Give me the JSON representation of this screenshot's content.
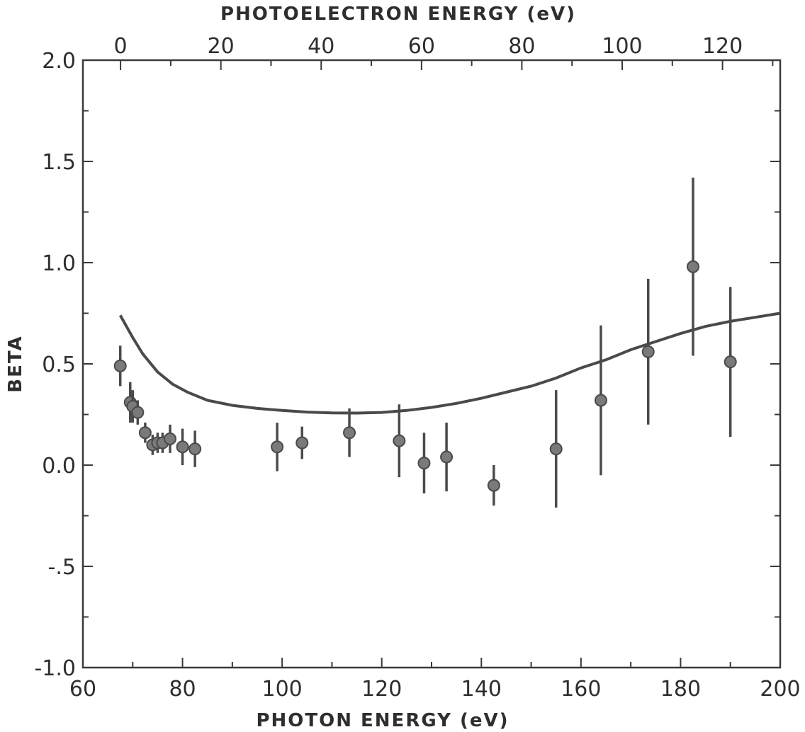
{
  "chart_data": {
    "type": "scatter",
    "xlabel": "PHOTON ENERGY (eV)",
    "x2label": "PHOTOELECTRON ENERGY (eV)",
    "ylabel": "BETA",
    "xlim": [
      60,
      200
    ],
    "ylim": [
      -1.0,
      2.0
    ],
    "x2lim": [
      -7.5,
      131.5
    ],
    "grid": false,
    "x_ticks": [
      60,
      80,
      100,
      120,
      140,
      160,
      180,
      200
    ],
    "x_ticklabels": [
      "60",
      "80",
      "100",
      "120",
      "140",
      "160",
      "180",
      "200"
    ],
    "x2_ticks": [
      0,
      20,
      40,
      60,
      80,
      100,
      120
    ],
    "x2_ticklabels": [
      "0",
      "20",
      "40",
      "60",
      "80",
      "100",
      "120"
    ],
    "y_ticks": [
      -1.0,
      -0.5,
      0.0,
      0.5,
      1.0,
      1.5,
      2.0
    ],
    "y_ticklabels": [
      "-1.0",
      "-.5",
      "0.0",
      "0.5",
      "1.0",
      "1.5",
      "2.0"
    ],
    "series": [
      {
        "kind": "points",
        "x": [
          67.5,
          69.5,
          70.0,
          71.0,
          72.5,
          74.0,
          75.0,
          76.0,
          77.5,
          80.0,
          82.5,
          99.0,
          104.0,
          113.5,
          123.5,
          128.5,
          133.0,
          142.5,
          155.0,
          164.0,
          173.5,
          182.5,
          190.0
        ],
        "y": [
          0.49,
          0.31,
          0.29,
          0.26,
          0.16,
          0.1,
          0.11,
          0.11,
          0.13,
          0.09,
          0.08,
          0.09,
          0.11,
          0.16,
          0.12,
          0.01,
          0.04,
          -0.1,
          0.08,
          0.32,
          0.56,
          0.98,
          0.51
        ],
        "err": [
          0.1,
          0.1,
          0.08,
          0.06,
          0.05,
          0.05,
          0.05,
          0.05,
          0.07,
          0.09,
          0.09,
          0.12,
          0.08,
          0.12,
          0.18,
          0.15,
          0.17,
          0.1,
          0.29,
          0.37,
          0.36,
          0.44,
          0.37
        ]
      },
      {
        "kind": "curve",
        "x": [
          67.5,
          70,
          72,
          75,
          78,
          81,
          85,
          90,
          95,
          100,
          105,
          110,
          115,
          120,
          125,
          130,
          135,
          140,
          145,
          150,
          155,
          160,
          165,
          170,
          175,
          180,
          185,
          190,
          195,
          200
        ],
        "y": [
          0.74,
          0.63,
          0.55,
          0.46,
          0.4,
          0.36,
          0.32,
          0.295,
          0.28,
          0.27,
          0.262,
          0.258,
          0.257,
          0.26,
          0.27,
          0.285,
          0.305,
          0.33,
          0.36,
          0.39,
          0.43,
          0.48,
          0.52,
          0.57,
          0.61,
          0.65,
          0.685,
          0.71,
          0.73,
          0.75
        ]
      }
    ]
  }
}
